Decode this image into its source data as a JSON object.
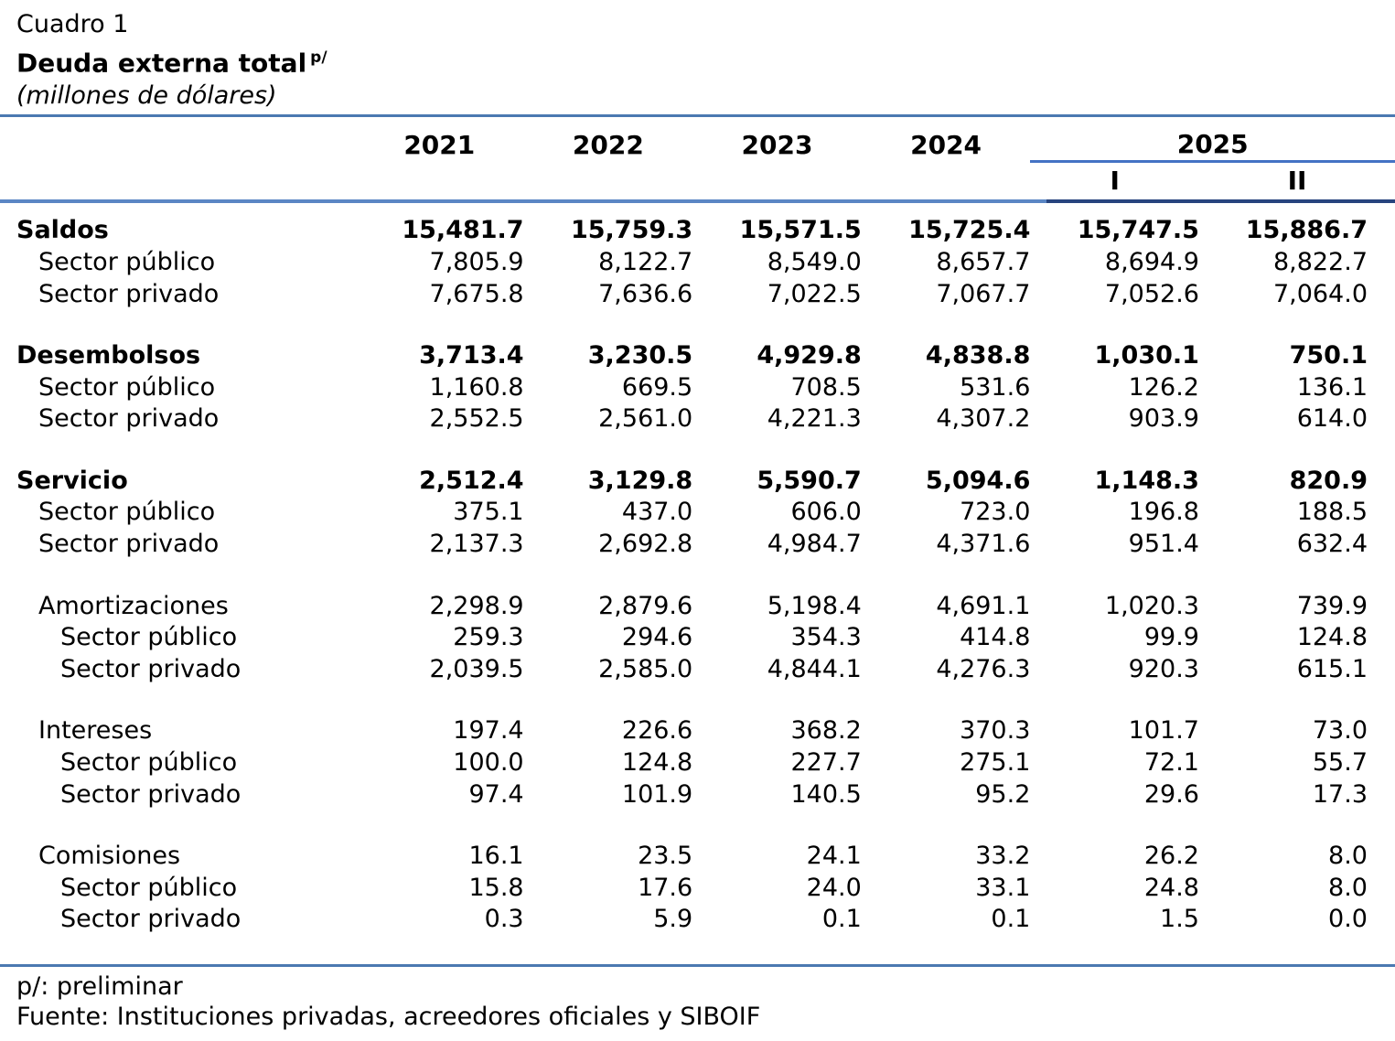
{
  "header": {
    "eyebrow": "Cuadro 1",
    "title": "Deuda externa total",
    "title_sup": "p/",
    "subtitle": "(millones de dólares)"
  },
  "table": {
    "year_columns": [
      "2021",
      "2022",
      "2023",
      "2024"
    ],
    "group_column": {
      "label": "2025",
      "subcolumns": [
        "I",
        "II"
      ]
    },
    "sections": [
      {
        "rows": [
          {
            "label": "Saldos",
            "indent": 0,
            "bold": true,
            "values": [
              "15,481.7",
              "15,759.3",
              "15,571.5",
              "15,725.4",
              "15,747.5",
              "15,886.7"
            ]
          },
          {
            "label": "Sector público",
            "indent": 1,
            "bold": false,
            "values": [
              "7,805.9",
              "8,122.7",
              "8,549.0",
              "8,657.7",
              "8,694.9",
              "8,822.7"
            ]
          },
          {
            "label": "Sector privado",
            "indent": 1,
            "bold": false,
            "values": [
              "7,675.8",
              "7,636.6",
              "7,022.5",
              "7,067.7",
              "7,052.6",
              "7,064.0"
            ]
          }
        ]
      },
      {
        "rows": [
          {
            "label": "Desembolsos",
            "indent": 0,
            "bold": true,
            "values": [
              "3,713.4",
              "3,230.5",
              "4,929.8",
              "4,838.8",
              "1,030.1",
              "750.1"
            ]
          },
          {
            "label": "Sector público",
            "indent": 1,
            "bold": false,
            "values": [
              "1,160.8",
              "669.5",
              "708.5",
              "531.6",
              "126.2",
              "136.1"
            ]
          },
          {
            "label": "Sector privado",
            "indent": 1,
            "bold": false,
            "values": [
              "2,552.5",
              "2,561.0",
              "4,221.3",
              "4,307.2",
              "903.9",
              "614.0"
            ]
          }
        ]
      },
      {
        "rows": [
          {
            "label": "Servicio",
            "indent": 0,
            "bold": true,
            "values": [
              "2,512.4",
              "3,129.8",
              "5,590.7",
              "5,094.6",
              "1,148.3",
              "820.9"
            ]
          },
          {
            "label": "Sector público",
            "indent": 1,
            "bold": false,
            "values": [
              "375.1",
              "437.0",
              "606.0",
              "723.0",
              "196.8",
              "188.5"
            ]
          },
          {
            "label": "Sector privado",
            "indent": 1,
            "bold": false,
            "values": [
              "2,137.3",
              "2,692.8",
              "4,984.7",
              "4,371.6",
              "951.4",
              "632.4"
            ]
          }
        ]
      },
      {
        "rows": [
          {
            "label": "Amortizaciones",
            "indent": 1,
            "bold": false,
            "values": [
              "2,298.9",
              "2,879.6",
              "5,198.4",
              "4,691.1",
              "1,020.3",
              "739.9"
            ]
          },
          {
            "label": "Sector público",
            "indent": 2,
            "bold": false,
            "values": [
              "259.3",
              "294.6",
              "354.3",
              "414.8",
              "99.9",
              "124.8"
            ]
          },
          {
            "label": "Sector privado",
            "indent": 2,
            "bold": false,
            "values": [
              "2,039.5",
              "2,585.0",
              "4,844.1",
              "4,276.3",
              "920.3",
              "615.1"
            ]
          }
        ]
      },
      {
        "rows": [
          {
            "label": "Intereses",
            "indent": 1,
            "bold": false,
            "values": [
              "197.4",
              "226.6",
              "368.2",
              "370.3",
              "101.7",
              "73.0"
            ]
          },
          {
            "label": "Sector público",
            "indent": 2,
            "bold": false,
            "values": [
              "100.0",
              "124.8",
              "227.7",
              "275.1",
              "72.1",
              "55.7"
            ]
          },
          {
            "label": "Sector privado",
            "indent": 2,
            "bold": false,
            "values": [
              "97.4",
              "101.9",
              "140.5",
              "95.2",
              "29.6",
              "17.3"
            ]
          }
        ]
      },
      {
        "rows": [
          {
            "label": "Comisiones",
            "indent": 1,
            "bold": false,
            "values": [
              "16.1",
              "23.5",
              "24.1",
              "33.2",
              "26.2",
              "8.0"
            ]
          },
          {
            "label": "Sector público",
            "indent": 2,
            "bold": false,
            "values": [
              "15.8",
              "17.6",
              "24.0",
              "33.1",
              "24.8",
              "8.0"
            ]
          },
          {
            "label": "Sector privado",
            "indent": 2,
            "bold": false,
            "values": [
              "0.3",
              "5.9",
              "0.1",
              "0.1",
              "1.5",
              "0.0"
            ]
          }
        ]
      }
    ]
  },
  "footer": {
    "note": "p/: preliminar",
    "source": "Fuente: Instituciones privadas, acreedores oficiales y SIBOIF"
  },
  "colors": {
    "rule-blue": "#4b79b1",
    "rule-light": "#5b86c4",
    "rule-dark": "#27447e",
    "group-line": "#4472c4"
  }
}
